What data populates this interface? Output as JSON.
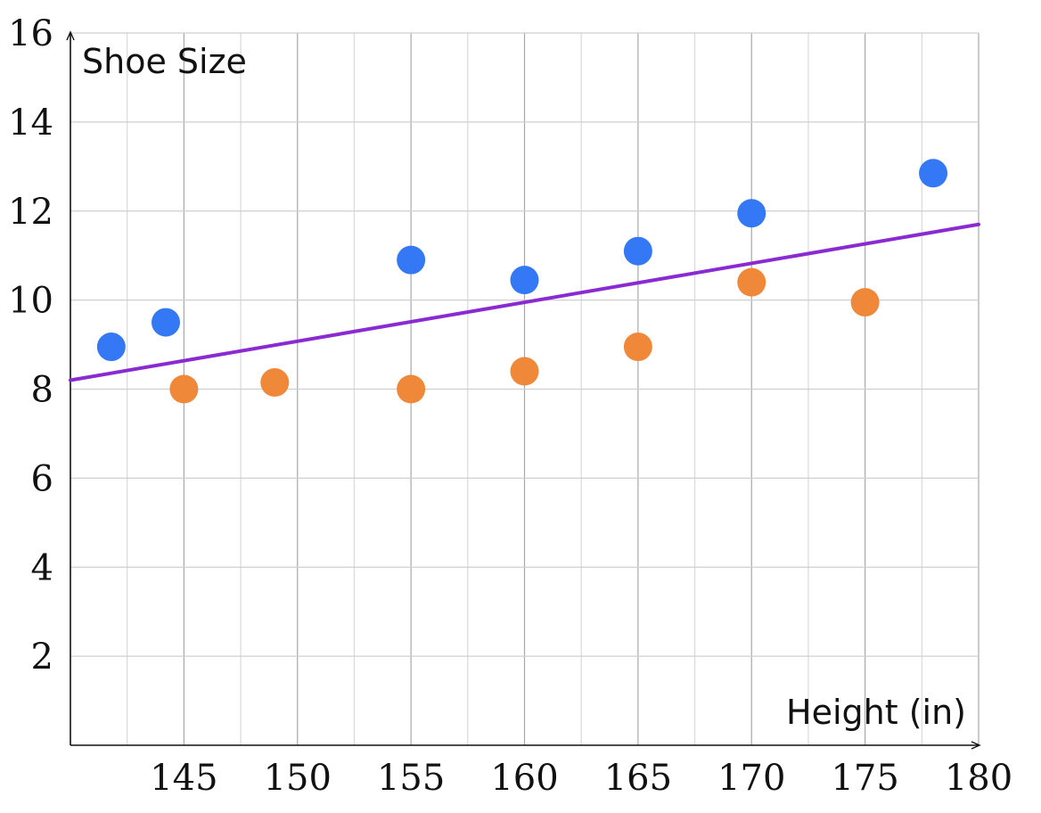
{
  "chart_data": {
    "type": "scatter",
    "xlabel": "Height (in)",
    "ylabel": "Shoe Size",
    "xlim": [
      140,
      180
    ],
    "ylim": [
      0,
      16
    ],
    "x_ticks": [
      145,
      150,
      155,
      160,
      165,
      170,
      175,
      180
    ],
    "y_ticks": [
      2,
      4,
      6,
      8,
      10,
      12,
      14,
      16
    ],
    "x_tick_labels": [
      "145",
      "150",
      "155",
      "160",
      "165",
      "170",
      "175",
      "180"
    ],
    "y_tick_labels": [
      "2",
      "4",
      "6",
      "8",
      "10",
      "12",
      "14",
      "16"
    ],
    "grid": true,
    "series": [
      {
        "color": "#3478f6",
        "points": [
          {
            "x": 141.8,
            "y": 8.95
          },
          {
            "x": 144.2,
            "y": 9.5
          },
          {
            "x": 155.0,
            "y": 10.9
          },
          {
            "x": 160.0,
            "y": 10.45
          },
          {
            "x": 165.0,
            "y": 11.1
          },
          {
            "x": 170.0,
            "y": 11.95
          },
          {
            "x": 178.0,
            "y": 12.85
          }
        ]
      },
      {
        "color": "#f0883a",
        "points": [
          {
            "x": 145.0,
            "y": 8.0
          },
          {
            "x": 149.0,
            "y": 8.15
          },
          {
            "x": 155.0,
            "y": 8.0
          },
          {
            "x": 160.0,
            "y": 8.4
          },
          {
            "x": 165.0,
            "y": 8.95
          },
          {
            "x": 170.0,
            "y": 10.4
          },
          {
            "x": 175.0,
            "y": 9.95
          }
        ]
      }
    ],
    "trendline": {
      "color": "#8a2bd2",
      "points": [
        {
          "x": 140,
          "y": 8.2
        },
        {
          "x": 180,
          "y": 11.7
        }
      ]
    }
  }
}
